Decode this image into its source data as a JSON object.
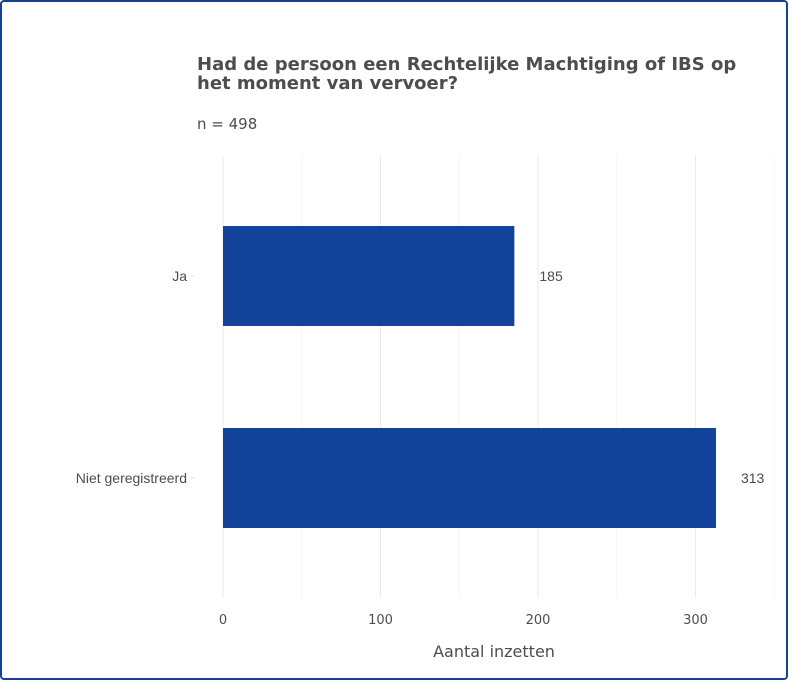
{
  "chart_data": {
    "type": "bar",
    "orientation": "horizontal",
    "title": "Had de persoon een Rechtelijke Machtiging of IBS op het moment van vervoer?",
    "subtitle": "n = 498",
    "categories": [
      "Ja",
      "Niet geregistreerd"
    ],
    "values": [
      185,
      313
    ],
    "xlabel": "Aantal inzetten",
    "ylabel": "",
    "xlim": [
      0,
      360
    ],
    "xticks": [
      0,
      100,
      200,
      300
    ],
    "bar_color": "#12429a",
    "grid": true
  }
}
